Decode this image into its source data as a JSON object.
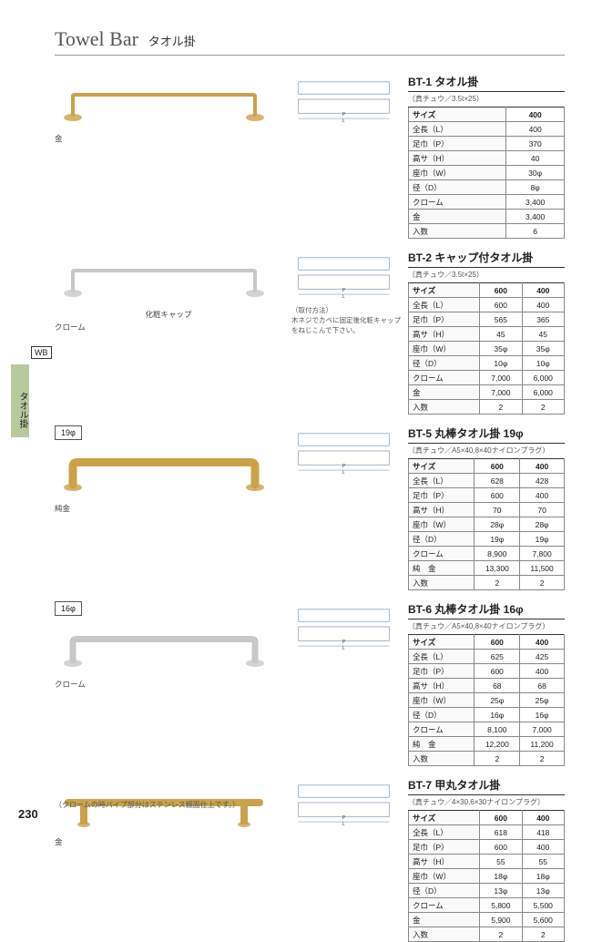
{
  "header": {
    "en": "Towel Bar",
    "jp": "タオル掛"
  },
  "sideTab": "タオル掛",
  "wb": "WB",
  "pageNum": "230",
  "footnote": "（クロームの時パイプ部分はステンレス鏡面仕上です。）",
  "dim19": "19φ",
  "dim16": "16φ",
  "products": [
    {
      "id": "bt1",
      "finish": "金",
      "finishColor": "#c9a24a",
      "title": "BT-1 タオル掛",
      "sub": "（真チュウ／3.5t×25）",
      "cols": [
        "サイズ",
        "400"
      ],
      "rows": [
        [
          "全長（L）",
          "400"
        ],
        [
          "足巾（P）",
          "370"
        ],
        [
          "高サ（H）",
          "40"
        ],
        [
          "座巾（W）",
          "30φ"
        ],
        [
          "径（D）",
          "8φ"
        ]
      ],
      "priceRows": [
        [
          "クローム",
          "3,400"
        ],
        [
          "金",
          "3,400"
        ]
      ],
      "qtyRow": [
        "入数",
        "6"
      ]
    },
    {
      "id": "bt2",
      "finish": "クローム",
      "finishColor": "#c8c8c8",
      "extraCaption": "化粧キャップ",
      "note": "（取付方法）\n木ネジでカベに固定後化粧キャップをねじこんで下さい。",
      "title": "BT-2 キャップ付タオル掛",
      "sub": "（真チュウ／3.5t×25）",
      "cols": [
        "サイズ",
        "600",
        "400"
      ],
      "rows": [
        [
          "全長（L）",
          "600",
          "400"
        ],
        [
          "足巾（P）",
          "565",
          "365"
        ],
        [
          "高サ（H）",
          "45",
          "45"
        ],
        [
          "座巾（W）",
          "35φ",
          "35φ"
        ],
        [
          "径（D）",
          "10φ",
          "10φ"
        ]
      ],
      "priceRows": [
        [
          "クローム",
          "7,000",
          "6,000"
        ],
        [
          "金",
          "7,000",
          "6,000"
        ]
      ],
      "qtyRow": [
        "入数",
        "2",
        "2"
      ]
    },
    {
      "id": "bt5",
      "finish": "純金",
      "finishColor": "#caa349",
      "title": "BT-5 丸棒タオル掛 19φ",
      "sub": "（真チュウ／A5×40,8×40ナイロンプラグ）",
      "cols": [
        "サイズ",
        "600",
        "400"
      ],
      "rows": [
        [
          "全長（L）",
          "628",
          "428"
        ],
        [
          "足巾（P）",
          "600",
          "400"
        ],
        [
          "高サ（H）",
          "70",
          "70"
        ],
        [
          "座巾（W）",
          "28φ",
          "28φ"
        ],
        [
          "径（D）",
          "19φ",
          "19φ"
        ]
      ],
      "priceRows": [
        [
          "クローム",
          "8,900",
          "7,800"
        ],
        [
          "純　金",
          "13,300",
          "11,500"
        ]
      ],
      "qtyRow": [
        "入数",
        "2",
        "2"
      ]
    },
    {
      "id": "bt6",
      "finish": "クローム",
      "finishColor": "#c8c8c8",
      "title": "BT-6 丸棒タオル掛 16φ",
      "sub": "（真チュウ／A5×40,8×40ナイロンプラグ）",
      "cols": [
        "サイズ",
        "600",
        "400"
      ],
      "rows": [
        [
          "全長（L）",
          "625",
          "425"
        ],
        [
          "足巾（P）",
          "600",
          "400"
        ],
        [
          "高サ（H）",
          "68",
          "68"
        ],
        [
          "座巾（W）",
          "25φ",
          "25φ"
        ],
        [
          "径（D）",
          "16φ",
          "16φ"
        ]
      ],
      "priceRows": [
        [
          "クローム",
          "8,100",
          "7,000"
        ],
        [
          "純　金",
          "12,200",
          "11,200"
        ]
      ],
      "qtyRow": [
        "入数",
        "2",
        "2"
      ]
    },
    {
      "id": "bt7",
      "finish": "金",
      "finishColor": "#c9a24a",
      "title": "BT-7 甲丸タオル掛",
      "sub": "（真チュウ／4×30,6×30ナイロンプラグ）",
      "cols": [
        "サイズ",
        "600",
        "400"
      ],
      "rows": [
        [
          "全長（L）",
          "618",
          "418"
        ],
        [
          "足巾（P）",
          "600",
          "400"
        ],
        [
          "高サ（H）",
          "55",
          "55"
        ],
        [
          "座巾（W）",
          "18φ",
          "18φ"
        ],
        [
          "径（D）",
          "13φ",
          "13φ"
        ]
      ],
      "priceRows": [
        [
          "クローム",
          "5,800",
          "5,500"
        ],
        [
          "金",
          "5,900",
          "5,600"
        ]
      ],
      "qtyRow": [
        "入数",
        "2",
        "2"
      ]
    }
  ]
}
